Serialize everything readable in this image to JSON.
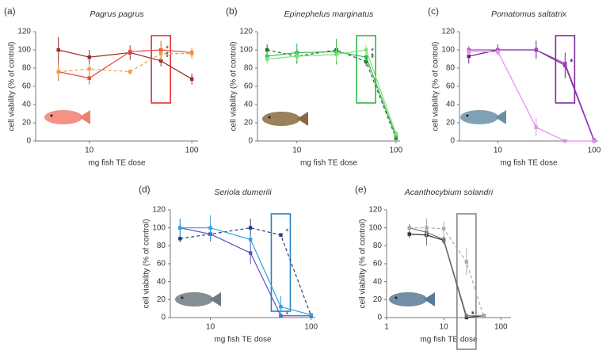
{
  "chart_data": [
    {
      "type": "line",
      "panel": "(a)",
      "title": "Pagrus pagrus",
      "x_label": "mg fish TE dose",
      "y_label": "cell viability (% of control)",
      "log_x": true,
      "xlim": [
        3,
        115
      ],
      "xticks": [
        10,
        100
      ],
      "ylim": [
        0,
        120
      ],
      "yticks": [
        0,
        20,
        40,
        60,
        80,
        100,
        120
      ],
      "x": [
        5,
        10,
        25,
        50,
        100
      ],
      "series": [
        {
          "color": "#9b2a22",
          "style": "solid",
          "values": [
            100,
            92,
            97,
            88,
            68
          ],
          "errors": [
            14,
            8,
            8,
            6,
            6
          ]
        },
        {
          "color": "#e8463c",
          "style": "solid",
          "values": [
            76,
            69,
            98,
            100,
            97
          ],
          "errors": [
            10,
            7,
            5,
            10,
            5
          ]
        },
        {
          "color": "#e8a040",
          "style": "dashed",
          "values": [
            76,
            79,
            76,
            96,
            96
          ],
          "errors": [
            8,
            6,
            3,
            8,
            6
          ]
        }
      ],
      "highlight": {
        "x": 50,
        "color": "#e53030"
      },
      "annotations": [
        "*",
        "*",
        "*"
      ],
      "fish_color": "#f08070"
    },
    {
      "type": "line",
      "panel": "(b)",
      "title": "Epinephelus marginatus",
      "x_label": "mg fish TE dose",
      "y_label": "cell viability (% of control)",
      "log_x": true,
      "xlim": [
        4,
        110
      ],
      "xticks": [
        10,
        100
      ],
      "ylim": [
        0,
        120
      ],
      "yticks": [
        0,
        20,
        40,
        60,
        80,
        100,
        120
      ],
      "x": [
        5,
        10,
        25,
        50,
        100
      ],
      "series": [
        {
          "color": "#1a6e2a",
          "style": "dashed",
          "values": [
            100,
            93,
            100,
            87,
            3
          ],
          "errors": [
            6,
            8,
            6,
            5,
            2
          ]
        },
        {
          "color": "#2db84a",
          "style": "solid",
          "values": [
            93,
            97,
            98,
            92,
            5
          ],
          "errors": [
            6,
            10,
            14,
            6,
            3
          ]
        },
        {
          "color": "#7ee07a",
          "style": "solid",
          "values": [
            90,
            93,
            95,
            100,
            8
          ],
          "errors": [
            5,
            6,
            8,
            5,
            3
          ]
        }
      ],
      "highlight": {
        "x": 50,
        "color": "#2db84a"
      },
      "annotations": [
        "*",
        "*",
        "*"
      ],
      "fish_color": "#8a6a40"
    },
    {
      "type": "line",
      "panel": "(c)",
      "title": "Pomatomus saltatrix",
      "x_label": "mg fish TE dose",
      "y_label": "cell viability (% of control)",
      "log_x": true,
      "xlim": [
        4,
        110
      ],
      "xticks": [
        10,
        100
      ],
      "ylim": [
        0,
        120
      ],
      "yticks": [
        0,
        20,
        40,
        60,
        80,
        100,
        120
      ],
      "x": [
        5,
        10,
        25,
        50,
        100
      ],
      "series": [
        {
          "color": "#6a1a8a",
          "style": "solid",
          "values": [
            93,
            100,
            100,
            83,
            0
          ],
          "errors": [
            8,
            6,
            10,
            14,
            1
          ]
        },
        {
          "color": "#a040c0",
          "style": "solid",
          "values": [
            100,
            100,
            100,
            85,
            1
          ],
          "errors": [
            4,
            4,
            6,
            8,
            2
          ]
        },
        {
          "color": "#e090e8",
          "style": "solid",
          "values": [
            98,
            98,
            15,
            0,
            0
          ],
          "errors": [
            4,
            4,
            10,
            1,
            1
          ]
        }
      ],
      "highlight": {
        "x": 50,
        "color": "#7a30a0"
      },
      "annotations": [
        "*",
        "*"
      ],
      "fish_color": "#6a90a8"
    },
    {
      "type": "line",
      "panel": "(d)",
      "title": "Seriola dumerili",
      "x_label": "mg fish TE dose",
      "y_label": "cell viability (% of control)",
      "log_x": true,
      "xlim": [
        4,
        110
      ],
      "xticks": [
        10,
        100
      ],
      "ylim": [
        0,
        120
      ],
      "yticks": [
        0,
        20,
        40,
        60,
        80,
        100,
        120
      ],
      "x": [
        5,
        10,
        25,
        50,
        100
      ],
      "series": [
        {
          "color": "#2a3a7a",
          "style": "dashed",
          "values": [
            88,
            93,
            100,
            92,
            2
          ],
          "errors": [
            4,
            8,
            10,
            2,
            2
          ]
        },
        {
          "color": "#5a50c0",
          "style": "solid",
          "values": [
            100,
            93,
            72,
            2,
            2
          ],
          "errors": [
            10,
            6,
            12,
            2,
            2
          ]
        },
        {
          "color": "#30a0e0",
          "style": "solid",
          "values": [
            100,
            100,
            87,
            12,
            3
          ],
          "errors": [
            10,
            14,
            6,
            12,
            2
          ]
        }
      ],
      "highlight": {
        "x": 50,
        "color": "#2a80c0"
      },
      "annotations": [
        "*",
        "*"
      ],
      "fish_color": "#707a80"
    },
    {
      "type": "line",
      "panel": "(e)",
      "title": "Acanthocybium solandri",
      "x_label": "mg fish TE dose",
      "y_label": "cell viability (% of control)",
      "log_x": true,
      "xlim": [
        1,
        150
      ],
      "xticks": [
        1,
        10,
        100
      ],
      "ylim": [
        0,
        120
      ],
      "yticks": [
        0,
        20,
        40,
        60,
        80,
        100,
        120
      ],
      "x": [
        2.5,
        5,
        10,
        25,
        50
      ],
      "series": [
        {
          "color": "#333333",
          "style": "solid",
          "values": [
            93,
            92,
            86,
            0,
            2
          ],
          "errors": [
            4,
            6,
            4,
            1,
            2
          ]
        },
        {
          "color": "#777777",
          "style": "solid",
          "values": [
            100,
            95,
            87,
            2,
            2
          ],
          "errors": [
            4,
            15,
            4,
            2,
            2
          ]
        },
        {
          "color": "#aaaaaa",
          "style": "dashed",
          "values": [
            100,
            100,
            99,
            62,
            1
          ],
          "errors": [
            4,
            10,
            8,
            15,
            2
          ]
        }
      ],
      "highlight": {
        "x": 25,
        "color": "#888888"
      },
      "annotations": [
        "*",
        "*"
      ],
      "fish_color": "#5a7a98"
    }
  ]
}
